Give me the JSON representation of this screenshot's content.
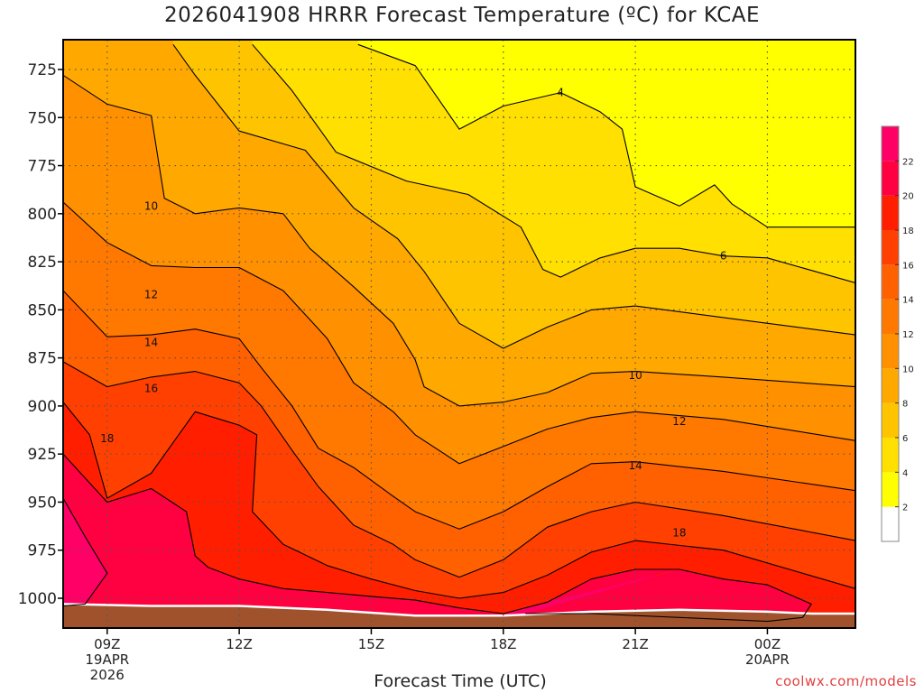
{
  "chart_data": {
    "type": "contour",
    "title": "2026041908 HRRR Forecast Temperature (ºC) for KCAE",
    "xlabel": "Forecast Time (UTC)",
    "ylabel": "",
    "y_axis": {
      "scale": "pressure",
      "units": "hPa",
      "inverted": true,
      "range": [
        1020,
        712
      ],
      "ticks": [
        725,
        750,
        775,
        800,
        825,
        850,
        875,
        900,
        925,
        950,
        975,
        1000
      ]
    },
    "x_axis": {
      "range_hours": [
        8,
        26
      ],
      "ticks": [
        {
          "hour": 9,
          "label": [
            "09Z",
            "19APR",
            "2026"
          ]
        },
        {
          "hour": 12,
          "label": [
            "12Z"
          ]
        },
        {
          "hour": 15,
          "label": [
            "15Z"
          ]
        },
        {
          "hour": 18,
          "label": [
            "18Z"
          ]
        },
        {
          "hour": 21,
          "label": [
            "21Z"
          ]
        },
        {
          "hour": 24,
          "label": [
            "00Z",
            "20APR"
          ]
        }
      ]
    },
    "grid": true,
    "colorbar": {
      "placement": "right",
      "levels": [
        2,
        4,
        6,
        8,
        10,
        12,
        14,
        16,
        18,
        20,
        22
      ],
      "labels": [
        "2",
        "4",
        "6",
        "8",
        "10",
        "12",
        "14",
        "16",
        "18",
        "20",
        "22"
      ],
      "colors": [
        "#ffffff",
        "#ffff00",
        "#ffe000",
        "#ffc400",
        "#ffa800",
        "#ff9000",
        "#ff7800",
        "#ff6000",
        "#ff4000",
        "#ff1e00",
        "#ff0040",
        "#ff0066"
      ]
    },
    "contour_labels": [
      {
        "text": "4",
        "hour": 19.3,
        "p": 737
      },
      {
        "text": "6",
        "hour": 23.0,
        "p": 822
      },
      {
        "text": "10",
        "hour": 10.0,
        "p": 796
      },
      {
        "text": "10",
        "hour": 21.0,
        "p": 884
      },
      {
        "text": "12",
        "hour": 10.0,
        "p": 842
      },
      {
        "text": "12",
        "hour": 22.0,
        "p": 908
      },
      {
        "text": "14",
        "hour": 10.0,
        "p": 867
      },
      {
        "text": "14",
        "hour": 21.0,
        "p": 931
      },
      {
        "text": "16",
        "hour": 10.0,
        "p": 891
      },
      {
        "text": "18",
        "hour": 9.0,
        "p": 917
      },
      {
        "text": "18",
        "hour": 22.0,
        "p": 966
      }
    ],
    "isotherms": [
      {
        "level": 4,
        "points": [
          [
            14.7,
            712
          ],
          [
            16.0,
            723
          ],
          [
            17.0,
            756
          ],
          [
            18.0,
            744
          ],
          [
            19.3,
            737
          ],
          [
            20.2,
            747
          ],
          [
            20.7,
            756
          ],
          [
            21.0,
            786
          ],
          [
            22.0,
            796
          ],
          [
            22.8,
            785
          ],
          [
            23.2,
            795
          ],
          [
            24.0,
            807
          ],
          [
            26.0,
            807
          ]
        ]
      },
      {
        "level": 6,
        "points": [
          [
            12.3,
            712
          ],
          [
            13.2,
            736
          ],
          [
            14.2,
            768
          ],
          [
            15.8,
            783
          ],
          [
            17.2,
            790
          ],
          [
            18.4,
            807
          ],
          [
            18.9,
            829
          ],
          [
            19.3,
            833
          ],
          [
            20.2,
            823
          ],
          [
            21.0,
            818
          ],
          [
            22.0,
            818
          ],
          [
            23.0,
            822
          ],
          [
            24.0,
            823
          ],
          [
            26.0,
            836
          ]
        ]
      },
      {
        "level": 8,
        "points": [
          [
            10.5,
            712
          ],
          [
            11.0,
            728
          ],
          [
            12.0,
            757
          ],
          [
            13.5,
            767
          ],
          [
            14.6,
            797
          ],
          [
            15.6,
            813
          ],
          [
            16.2,
            830
          ],
          [
            17.0,
            857
          ],
          [
            18.0,
            870
          ],
          [
            19.0,
            859
          ],
          [
            20.0,
            850
          ],
          [
            21.0,
            848
          ],
          [
            23.0,
            854
          ],
          [
            26.0,
            863
          ]
        ]
      },
      {
        "level": 10,
        "points": [
          [
            8.0,
            728
          ],
          [
            9.0,
            743
          ],
          [
            10.0,
            749
          ],
          [
            10.3,
            792
          ],
          [
            11.0,
            800
          ],
          [
            12.0,
            797
          ],
          [
            13.0,
            800
          ],
          [
            13.6,
            818
          ],
          [
            14.6,
            838
          ],
          [
            15.5,
            857
          ],
          [
            16.0,
            876
          ],
          [
            16.2,
            890
          ],
          [
            17.0,
            900
          ],
          [
            18.0,
            898
          ],
          [
            19.0,
            893
          ],
          [
            20.0,
            883
          ],
          [
            21.0,
            882
          ],
          [
            23.0,
            885
          ],
          [
            26.0,
            890
          ]
        ]
      },
      {
        "level": 12,
        "points": [
          [
            8.0,
            794
          ],
          [
            9.0,
            815
          ],
          [
            10.0,
            827
          ],
          [
            11.0,
            828
          ],
          [
            12.0,
            828
          ],
          [
            13.0,
            840
          ],
          [
            13.6,
            855
          ],
          [
            14.0,
            865
          ],
          [
            14.6,
            888
          ],
          [
            15.5,
            903
          ],
          [
            16.0,
            915
          ],
          [
            17.0,
            930
          ],
          [
            18.0,
            921
          ],
          [
            19.0,
            912
          ],
          [
            20.0,
            906
          ],
          [
            21.0,
            903
          ],
          [
            23.0,
            907
          ],
          [
            26.0,
            918
          ]
        ]
      },
      {
        "level": 14,
        "points": [
          [
            8.0,
            840
          ],
          [
            9.0,
            864
          ],
          [
            10.0,
            863
          ],
          [
            11.0,
            860
          ],
          [
            12.0,
            865
          ],
          [
            12.5,
            880
          ],
          [
            13.2,
            900
          ],
          [
            13.8,
            922
          ],
          [
            14.6,
            932
          ],
          [
            15.5,
            947
          ],
          [
            16.0,
            955
          ],
          [
            17.0,
            964
          ],
          [
            18.0,
            955
          ],
          [
            19.0,
            942
          ],
          [
            20.0,
            930
          ],
          [
            21.0,
            929
          ],
          [
            23.0,
            934
          ],
          [
            26.0,
            944
          ]
        ]
      },
      {
        "level": 16,
        "points": [
          [
            8.0,
            877
          ],
          [
            9.0,
            890
          ],
          [
            10.0,
            885
          ],
          [
            11.0,
            882
          ],
          [
            12.0,
            888
          ],
          [
            12.5,
            900
          ],
          [
            13.2,
            923
          ],
          [
            13.8,
            942
          ],
          [
            14.6,
            962
          ],
          [
            15.5,
            972
          ],
          [
            16.0,
            980
          ],
          [
            17.0,
            989
          ],
          [
            18.0,
            980
          ],
          [
            19.0,
            963
          ],
          [
            20.0,
            955
          ],
          [
            21.0,
            950
          ],
          [
            23.0,
            957
          ],
          [
            26.0,
            970
          ]
        ]
      },
      {
        "level": 18,
        "points": [
          [
            8.0,
            898
          ],
          [
            8.6,
            915
          ],
          [
            9.0,
            948
          ],
          [
            10.0,
            935
          ],
          [
            11.0,
            903
          ],
          [
            12.0,
            910
          ],
          [
            12.4,
            915
          ],
          [
            12.3,
            955
          ],
          [
            13.0,
            972
          ],
          [
            14.0,
            983
          ],
          [
            15.0,
            990
          ],
          [
            16.0,
            996
          ],
          [
            17.0,
            1000
          ],
          [
            18.0,
            997
          ],
          [
            19.0,
            988
          ],
          [
            20.0,
            976
          ],
          [
            21.0,
            970
          ],
          [
            23.0,
            975
          ],
          [
            26.0,
            995
          ]
        ]
      },
      {
        "level": 20,
        "points": [
          [
            8.0,
            925
          ],
          [
            9.0,
            950
          ],
          [
            10.0,
            943
          ],
          [
            10.8,
            955
          ],
          [
            11.0,
            978
          ],
          [
            11.3,
            984
          ],
          [
            12.0,
            990
          ],
          [
            13.0,
            995
          ],
          [
            14.0,
            997
          ],
          [
            15.0,
            999
          ],
          [
            16.0,
            1001
          ],
          [
            17.0,
            1005
          ],
          [
            18.0,
            1008
          ],
          [
            19.0,
            1002
          ],
          [
            20.0,
            990
          ],
          [
            21.0,
            985
          ],
          [
            22.0,
            985
          ],
          [
            23.0,
            990
          ],
          [
            24.0,
            993
          ],
          [
            25.0,
            1003
          ],
          [
            24.8,
            1010
          ],
          [
            24.0,
            1012
          ],
          [
            22.0,
            1010
          ],
          [
            20.0,
            1008
          ],
          [
            19.0,
            1008
          ],
          [
            18.5,
            1008
          ]
        ]
      },
      {
        "level": 22,
        "points": [
          [
            8.0,
            948
          ],
          [
            8.5,
            968
          ],
          [
            9.0,
            987
          ],
          [
            8.5,
            1003
          ],
          [
            8.0,
            1004
          ]
        ]
      }
    ]
  }
}
